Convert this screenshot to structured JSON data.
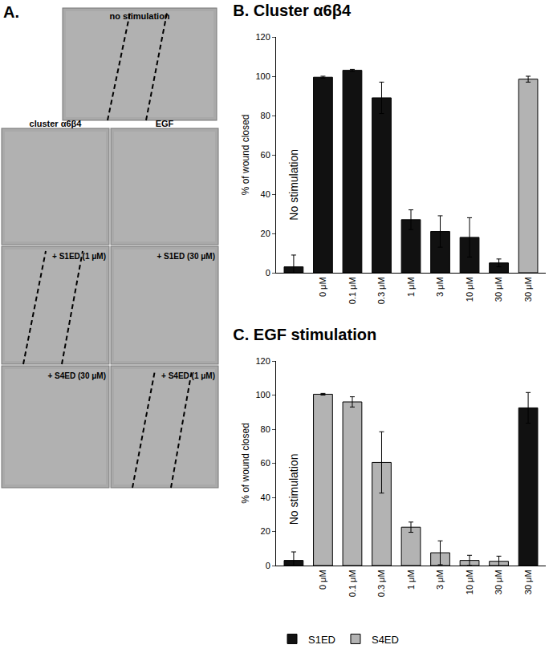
{
  "panel_a": {
    "label": "A.",
    "top": "no stimulation",
    "columns": [
      "cluster α6β4",
      "EGF"
    ],
    "rows": [
      [
        "+ S1ED (1 μM)",
        "+ S1ED (30 μM)"
      ],
      [
        "+ S4ED (30 μM)",
        "+ S4ED (1 μM)"
      ]
    ]
  },
  "chart_data": [
    {
      "type": "bar",
      "title": "B. Cluster α6β4",
      "y_label": "% of wound closed",
      "categories": [
        null,
        "0 μM",
        "0.1 μM",
        "0.3 μM",
        "1 μM",
        "3 μM",
        "10 μM",
        "30 μM",
        "30 μM"
      ],
      "series": [
        {
          "name": "S1ED",
          "color": "#111111",
          "values": [
            3,
            99.5,
            103,
            89,
            27,
            21,
            18,
            5,
            null
          ],
          "errors": [
            6,
            0.5,
            0.5,
            8,
            5,
            8,
            10,
            2,
            null
          ]
        },
        {
          "name": "S4ED",
          "color": "#b3b3b3",
          "values": [
            null,
            null,
            null,
            null,
            null,
            null,
            null,
            null,
            98.5
          ],
          "errors": [
            null,
            null,
            null,
            null,
            null,
            null,
            null,
            null,
            1.5
          ]
        }
      ],
      "ylim": [
        0,
        120
      ],
      "yticks": [
        0,
        20,
        40,
        60,
        80,
        100,
        120
      ],
      "annotations": [
        {
          "text": "No stimulation",
          "x": 0
        }
      ]
    },
    {
      "type": "bar",
      "title": "C. EGF stimulation",
      "y_label": "% of wound closed",
      "categories": [
        null,
        "0 μM",
        "0.1 μM",
        "0.3 μM",
        "1 μM",
        "3 μM",
        "10 μM",
        "30 μM",
        "30 μM"
      ],
      "series": [
        {
          "name": "S1ED",
          "color": "#111111",
          "values": [
            3,
            null,
            null,
            null,
            null,
            null,
            null,
            null,
            92.5
          ],
          "errors": [
            5,
            null,
            null,
            null,
            null,
            null,
            null,
            null,
            9
          ]
        },
        {
          "name": "S4ED",
          "color": "#b3b3b3",
          "values": [
            null,
            100.5,
            96,
            60.5,
            22.5,
            7.5,
            3,
            2.5,
            null
          ],
          "errors": [
            null,
            0.5,
            3,
            18,
            3,
            7,
            3,
            3,
            null
          ]
        }
      ],
      "ylim": [
        0,
        120
      ],
      "yticks": [
        0,
        20,
        40,
        60,
        80,
        100,
        120
      ],
      "annotations": [
        {
          "text": "No stimulation",
          "x": 0
        }
      ],
      "legend": "bottom"
    }
  ]
}
